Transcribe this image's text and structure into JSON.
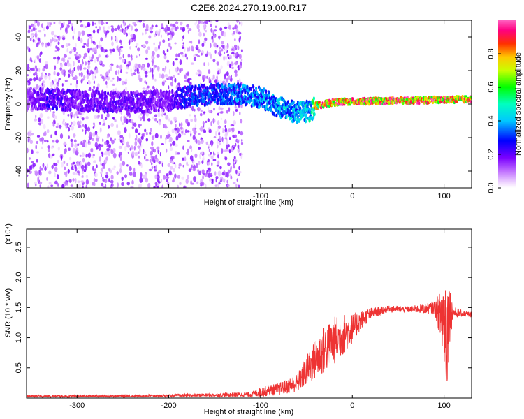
{
  "figure": {
    "title": "C2E6.2024.270.19.00.R17"
  },
  "chart_data": [
    {
      "type": "heatmap",
      "xlabel": "Height of straight line (km)",
      "ylabel": "Frequency (Hz)",
      "xlim": [
        -355,
        130
      ],
      "ylim": [
        -50,
        50
      ],
      "xticks": [
        -300,
        -200,
        -100,
        0,
        100
      ],
      "yticks": [
        -40,
        -20,
        0,
        20,
        40
      ],
      "colorbar": {
        "label": "Normalized spectral amplitude",
        "range": [
          0.0,
          1.0
        ],
        "ticks": [
          0.0,
          0.2,
          0.4,
          0.6,
          0.8
        ],
        "tick_labels": [
          "0.0",
          "0.2",
          "0.4",
          "0.6",
          "0.8"
        ],
        "colormap": "white-violet-blue-cyan-green-yellow-red-magenta"
      },
      "band_center": [
        {
          "x": -355,
          "y": 3,
          "amp": 0.15
        },
        {
          "x": -330,
          "y": 3,
          "amp": 0.25
        },
        {
          "x": -300,
          "y": 2,
          "amp": 0.2
        },
        {
          "x": -250,
          "y": 1,
          "amp": 0.22
        },
        {
          "x": -200,
          "y": 2,
          "amp": 0.18
        },
        {
          "x": -185,
          "y": 4,
          "amp": 0.3
        },
        {
          "x": -150,
          "y": 6,
          "amp": 0.35
        },
        {
          "x": -120,
          "y": 6,
          "amp": 0.38
        },
        {
          "x": -100,
          "y": 4,
          "amp": 0.4
        },
        {
          "x": -80,
          "y": -2,
          "amp": 0.42
        },
        {
          "x": -60,
          "y": -5,
          "amp": 0.45
        },
        {
          "x": -45,
          "y": -4,
          "amp": 0.5
        },
        {
          "x": -40,
          "y": -1,
          "amp": 0.85
        },
        {
          "x": -20,
          "y": 1,
          "amp": 0.9
        },
        {
          "x": 0,
          "y": 1.5,
          "amp": 0.92
        },
        {
          "x": 50,
          "y": 2,
          "amp": 0.95
        },
        {
          "x": 100,
          "y": 2.5,
          "amp": 0.95
        },
        {
          "x": 130,
          "y": 3,
          "amp": 0.95
        }
      ],
      "noise_region": {
        "x_from": -355,
        "x_to": -120,
        "level": 0.1
      }
    },
    {
      "type": "line",
      "xlabel": "Height of straight line (km)",
      "ylabel": "SNR (10 * v/v)",
      "y_multiplier": "(x10⁴)",
      "xlim": [
        -355,
        130
      ],
      "ylim": [
        0.0,
        2.8
      ],
      "xticks": [
        -300,
        -200,
        -100,
        0,
        100
      ],
      "yticks": [
        0.5,
        1.0,
        1.5,
        2.0,
        2.5
      ],
      "ytick_labels": [
        "0.5",
        "1.0",
        "1.5",
        "2.0",
        "2.5"
      ],
      "color": "#ee3333",
      "envelope": [
        {
          "x": -355,
          "y": 0.03,
          "jitter": 0.02
        },
        {
          "x": -300,
          "y": 0.03,
          "jitter": 0.02
        },
        {
          "x": -200,
          "y": 0.04,
          "jitter": 0.02
        },
        {
          "x": -150,
          "y": 0.05,
          "jitter": 0.03
        },
        {
          "x": -110,
          "y": 0.06,
          "jitter": 0.04
        },
        {
          "x": -100,
          "y": 0.1,
          "jitter": 0.08
        },
        {
          "x": -80,
          "y": 0.15,
          "jitter": 0.1
        },
        {
          "x": -60,
          "y": 0.25,
          "jitter": 0.15
        },
        {
          "x": -50,
          "y": 0.45,
          "jitter": 0.25
        },
        {
          "x": -40,
          "y": 0.65,
          "jitter": 0.35
        },
        {
          "x": -30,
          "y": 0.8,
          "jitter": 0.4
        },
        {
          "x": -20,
          "y": 0.95,
          "jitter": 0.4
        },
        {
          "x": -10,
          "y": 1.05,
          "jitter": 0.35
        },
        {
          "x": 0,
          "y": 1.15,
          "jitter": 0.25
        },
        {
          "x": 10,
          "y": 1.3,
          "jitter": 0.15
        },
        {
          "x": 20,
          "y": 1.4,
          "jitter": 0.1
        },
        {
          "x": 40,
          "y": 1.48,
          "jitter": 0.05
        },
        {
          "x": 60,
          "y": 1.47,
          "jitter": 0.05
        },
        {
          "x": 80,
          "y": 1.48,
          "jitter": 0.08
        },
        {
          "x": 90,
          "y": 1.5,
          "jitter": 0.12
        },
        {
          "x": 95,
          "y": 1.4,
          "jitter": 0.35
        },
        {
          "x": 100,
          "y": 1.3,
          "jitter": 0.9
        },
        {
          "x": 103,
          "y": 1.1,
          "jitter": 1.0
        },
        {
          "x": 106,
          "y": 1.4,
          "jitter": 0.5
        },
        {
          "x": 110,
          "y": 1.42,
          "jitter": 0.1
        },
        {
          "x": 120,
          "y": 1.4,
          "jitter": 0.05
        },
        {
          "x": 130,
          "y": 1.38,
          "jitter": 0.05
        }
      ]
    }
  ]
}
